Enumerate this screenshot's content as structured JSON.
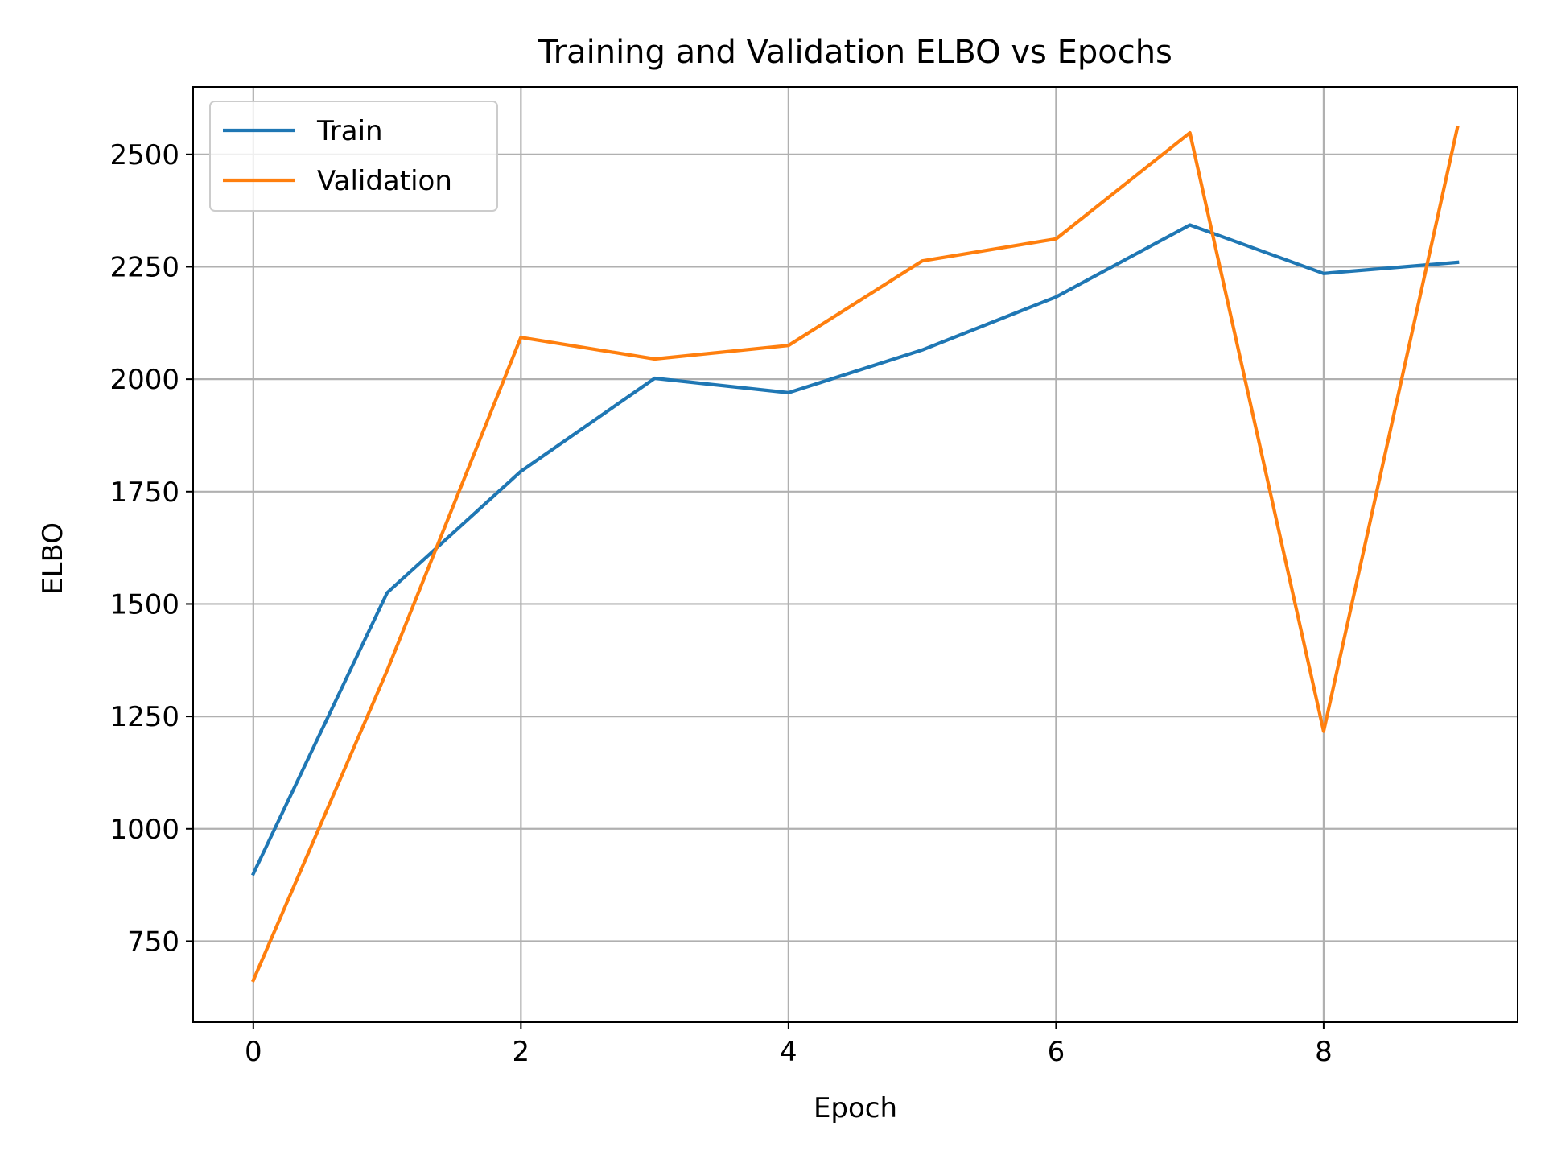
{
  "chart_data": {
    "type": "line",
    "title": "Training and Validation ELBO vs Epochs",
    "xlabel": "Epoch",
    "ylabel": "ELBO",
    "x": [
      0,
      1,
      2,
      3,
      4,
      5,
      6,
      7,
      8,
      9
    ],
    "xlim": [
      -0.45,
      9.45
    ],
    "ylim": [
      570,
      2650
    ],
    "xticks": [
      0,
      2,
      4,
      6,
      8
    ],
    "yticks": [
      750,
      1000,
      1250,
      1500,
      1750,
      2000,
      2250,
      2500
    ],
    "grid": true,
    "legend_position": "upper-left",
    "series": [
      {
        "name": "Train",
        "color": "#1f77b4",
        "values": [
          900,
          1525,
          1795,
          2002,
          1970,
          2065,
          2183,
          2343,
          2235,
          2260
        ]
      },
      {
        "name": "Validation",
        "color": "#ff7f0e",
        "values": [
          663,
          1352,
          2093,
          2045,
          2075,
          2263,
          2312,
          2548,
          1217,
          2560
        ]
      }
    ]
  }
}
